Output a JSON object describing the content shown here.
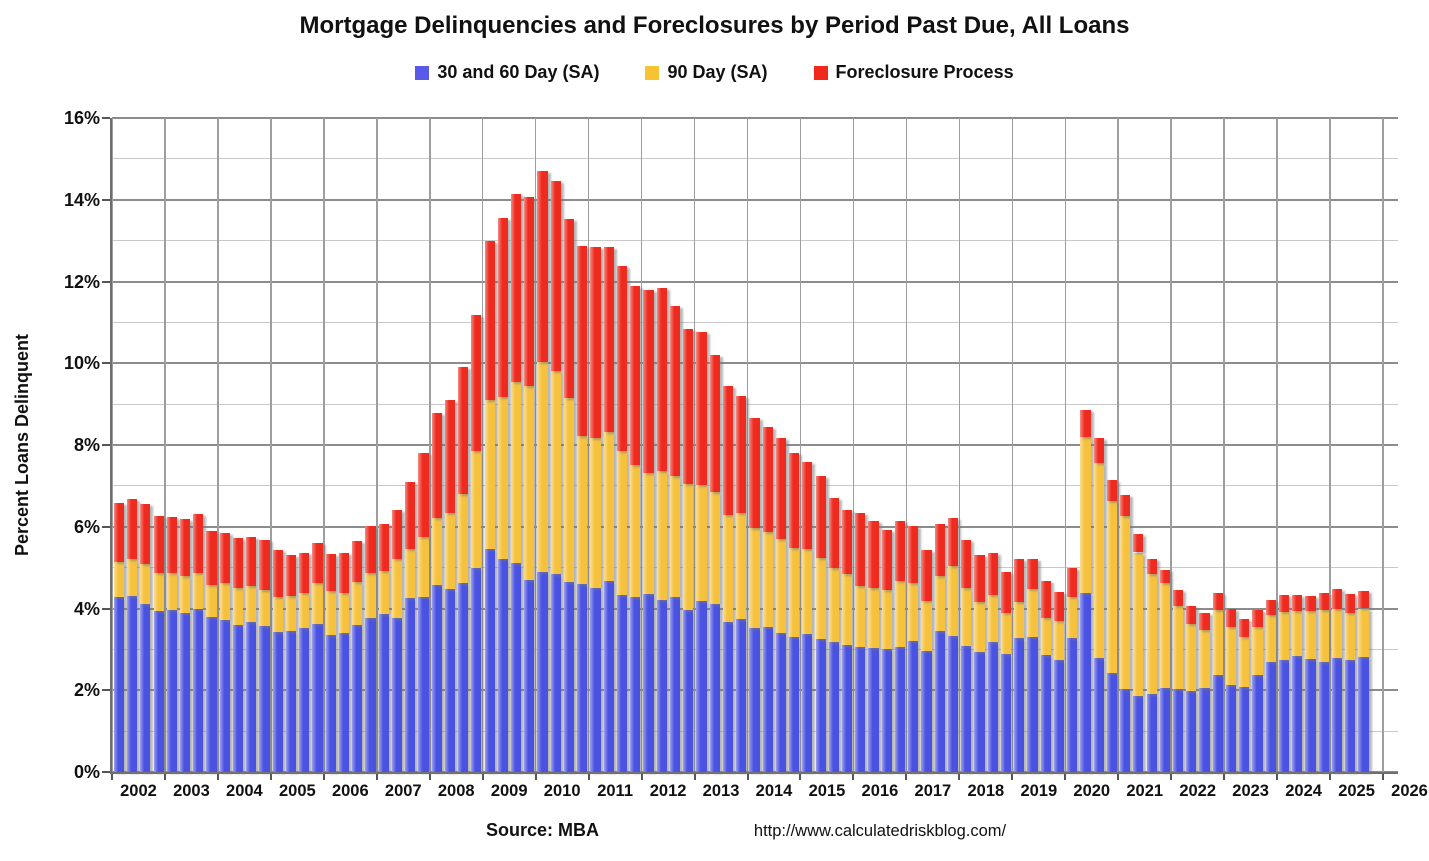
{
  "title": "Mortgage Delinquencies and Foreclosures by Period Past Due, All Loans",
  "legend": [
    {
      "label": "30 and 60 Day (SA)",
      "color": "#5a5ae8"
    },
    {
      "label": "90 Day (SA)",
      "color": "#f8c331"
    },
    {
      "label": "Foreclosure Process",
      "color": "#f3281c"
    }
  ],
  "y_axis": {
    "title": "Percent Loans Delinquent",
    "tick_labels": [
      "0%",
      "2%",
      "4%",
      "6%",
      "8%",
      "10%",
      "12%",
      "14%",
      "16%"
    ],
    "minor_step_pct": 1,
    "major_step_pct": 2
  },
  "x_axis": {
    "years": [
      2002,
      2003,
      2004,
      2005,
      2006,
      2007,
      2008,
      2009,
      2010,
      2011,
      2012,
      2013,
      2014,
      2015,
      2016,
      2017,
      2018,
      2019,
      2020,
      2021,
      2022,
      2023,
      2024,
      2025,
      2026
    ]
  },
  "footer": {
    "source": "Source: MBA",
    "url": "http://www.calculatedriskblog.com/"
  },
  "chart_data": {
    "type": "bar",
    "stacked": true,
    "title": "Mortgage Delinquencies and Foreclosures by Period Past Due, All Loans",
    "xlabel": "",
    "ylabel": "Percent Loans Delinquent",
    "ylim": [
      0,
      16
    ],
    "x_range_years": [
      2002,
      2026.25
    ],
    "grid": "major 2% dark, minor 1% light, vertical line each year",
    "legend_position": "top-center",
    "categories": [
      "2002 Q1",
      "2002 Q2",
      "2002 Q3",
      "2002 Q4",
      "2003 Q1",
      "2003 Q2",
      "2003 Q3",
      "2003 Q4",
      "2004 Q1",
      "2004 Q2",
      "2004 Q3",
      "2004 Q4",
      "2005 Q1",
      "2005 Q2",
      "2005 Q3",
      "2005 Q4",
      "2006 Q1",
      "2006 Q2",
      "2006 Q3",
      "2006 Q4",
      "2007 Q1",
      "2007 Q2",
      "2007 Q3",
      "2007 Q4",
      "2008 Q1",
      "2008 Q2",
      "2008 Q3",
      "2008 Q4",
      "2009 Q1",
      "2009 Q2",
      "2009 Q3",
      "2009 Q4",
      "2010 Q1",
      "2010 Q2",
      "2010 Q3",
      "2010 Q4",
      "2011 Q1",
      "2011 Q2",
      "2011 Q3",
      "2011 Q4",
      "2012 Q1",
      "2012 Q2",
      "2012 Q3",
      "2012 Q4",
      "2013 Q1",
      "2013 Q2",
      "2013 Q3",
      "2013 Q4",
      "2014 Q1",
      "2014 Q2",
      "2014 Q3",
      "2014 Q4",
      "2015 Q1",
      "2015 Q2",
      "2015 Q3",
      "2015 Q4",
      "2016 Q1",
      "2016 Q2",
      "2016 Q3",
      "2016 Q4",
      "2017 Q1",
      "2017 Q2",
      "2017 Q3",
      "2017 Q4",
      "2018 Q1",
      "2018 Q2",
      "2018 Q3",
      "2018 Q4",
      "2019 Q1",
      "2019 Q2",
      "2019 Q3",
      "2019 Q4",
      "2020 Q1",
      "2020 Q2",
      "2020 Q3",
      "2020 Q4",
      "2021 Q1",
      "2021 Q2",
      "2021 Q3",
      "2021 Q4",
      "2022 Q1",
      "2022 Q2",
      "2022 Q3",
      "2022 Q4",
      "2023 Q1",
      "2023 Q2",
      "2023 Q3",
      "2023 Q4",
      "2024 Q1",
      "2024 Q2",
      "2024 Q3",
      "2024 Q4",
      "2025 Q1",
      "2025 Q2",
      "2025 Q3"
    ],
    "series": [
      {
        "name": "30 and 60 Day (SA)",
        "color": "#4a52e2",
        "values": [
          4.27,
          4.3,
          4.11,
          3.95,
          3.97,
          3.88,
          3.98,
          3.79,
          3.72,
          3.6,
          3.66,
          3.56,
          3.43,
          3.45,
          3.52,
          3.62,
          3.35,
          3.41,
          3.6,
          3.76,
          3.87,
          3.77,
          4.25,
          4.28,
          4.57,
          4.48,
          4.62,
          4.98,
          5.45,
          5.2,
          5.12,
          4.7,
          4.9,
          4.85,
          4.64,
          4.59,
          4.51,
          4.68,
          4.32,
          4.27,
          4.35,
          4.21,
          4.29,
          3.97,
          4.18,
          4.12,
          3.68,
          3.74,
          3.52,
          3.55,
          3.39,
          3.3,
          3.37,
          3.26,
          3.17,
          3.11,
          3.06,
          3.04,
          3.0,
          3.05,
          3.2,
          2.95,
          3.46,
          3.33,
          3.08,
          2.93,
          3.19,
          2.88,
          3.28,
          3.3,
          2.87,
          2.74,
          3.28,
          4.38,
          2.8,
          2.41,
          2.02,
          1.86,
          1.91,
          2.05,
          2.02,
          1.98,
          2.05,
          2.38,
          2.13,
          2.09,
          2.38,
          2.68,
          2.75,
          2.85,
          2.77,
          2.7,
          2.8,
          2.74,
          2.82
        ]
      },
      {
        "name": "90 Day (SA)",
        "color": "#f6c23e",
        "values": [
          0.86,
          0.91,
          0.99,
          0.92,
          0.9,
          0.91,
          0.89,
          0.79,
          0.9,
          0.9,
          0.9,
          0.9,
          0.86,
          0.85,
          0.87,
          1.0,
          1.09,
          0.98,
          1.06,
          1.1,
          1.04,
          1.43,
          1.2,
          1.48,
          1.65,
          1.85,
          2.19,
          2.88,
          3.64,
          3.98,
          4.43,
          4.74,
          5.12,
          4.95,
          4.5,
          3.62,
          3.65,
          3.64,
          3.54,
          3.23,
          2.96,
          3.15,
          2.96,
          3.07,
          2.83,
          2.72,
          2.61,
          2.59,
          2.44,
          2.31,
          2.32,
          2.17,
          2.08,
          1.97,
          1.81,
          1.73,
          1.48,
          1.47,
          1.45,
          1.62,
          1.43,
          1.24,
          1.34,
          1.72,
          1.42,
          1.22,
          1.13,
          1.02,
          0.87,
          1.17,
          0.89,
          0.96,
          1.01,
          3.81,
          4.75,
          4.21,
          4.24,
          3.51,
          2.94,
          2.57,
          2.03,
          1.63,
          1.43,
          1.58,
          1.42,
          1.21,
          1.17,
          1.15,
          1.16,
          1.08,
          1.17,
          1.26,
          1.19,
          1.16,
          1.18
        ]
      },
      {
        "name": "Foreclosure Process",
        "color": "#ee2b1e",
        "values": [
          1.45,
          1.48,
          1.46,
          1.4,
          1.38,
          1.41,
          1.43,
          1.31,
          1.22,
          1.22,
          1.19,
          1.22,
          1.14,
          1.0,
          0.96,
          0.98,
          0.89,
          0.96,
          0.99,
          1.17,
          1.15,
          1.22,
          1.65,
          2.04,
          2.56,
          2.77,
          3.1,
          3.31,
          3.89,
          4.37,
          4.58,
          4.62,
          4.68,
          4.66,
          4.39,
          4.66,
          4.68,
          4.52,
          4.52,
          4.4,
          4.47,
          4.49,
          4.16,
          3.81,
          3.75,
          3.37,
          3.15,
          2.87,
          2.69,
          2.59,
          2.45,
          2.33,
          2.13,
          2.02,
          1.72,
          1.56,
          1.79,
          1.62,
          1.48,
          1.48,
          1.39,
          1.23,
          1.26,
          1.17,
          1.18,
          1.15,
          1.04,
          1.0,
          1.05,
          0.73,
          0.92,
          0.7,
          0.69,
          0.66,
          0.61,
          0.52,
          0.51,
          0.45,
          0.37,
          0.32,
          0.41,
          0.46,
          0.4,
          0.41,
          0.44,
          0.44,
          0.41,
          0.38,
          0.41,
          0.39,
          0.36,
          0.41,
          0.48,
          0.46,
          0.44
        ]
      }
    ]
  }
}
